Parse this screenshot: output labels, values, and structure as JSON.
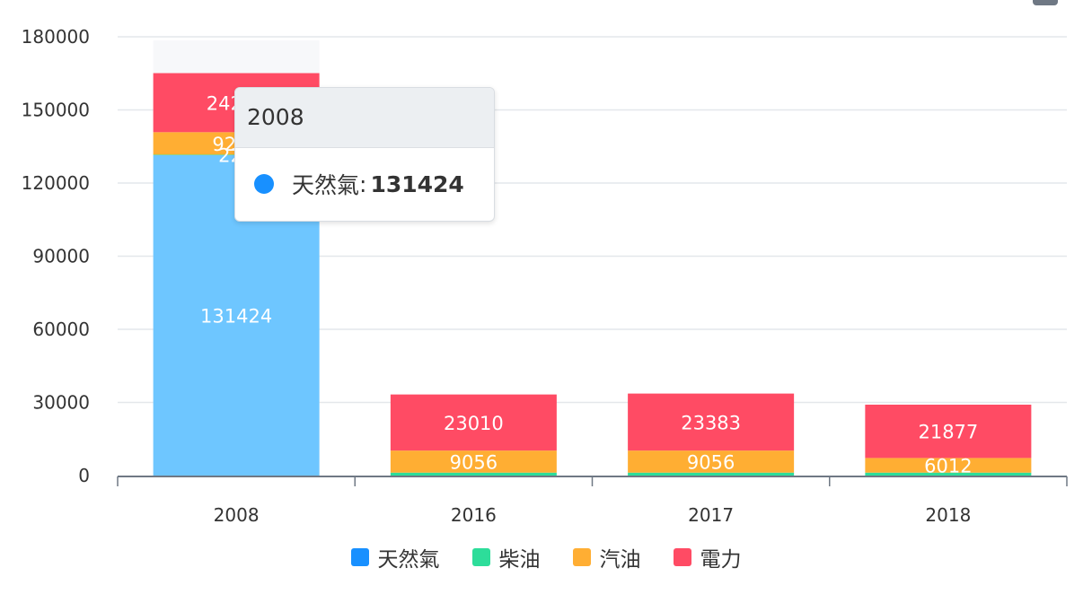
{
  "chart_data": {
    "type": "bar",
    "stacked": true,
    "categories": [
      "2008",
      "2016",
      "2017",
      "2018"
    ],
    "series": [
      {
        "name": "天然氣",
        "color": "#1890ff",
        "bar_color": "#6ec6ff",
        "values": [
          131424,
          0,
          0,
          0
        ],
        "labels": [
          "131424",
          "",
          "",
          ""
        ]
      },
      {
        "name": "柴油",
        "color": "#2ddd9a",
        "bar_color": "#2ddd9a",
        "values": [
          222,
          1200,
          1200,
          1200
        ],
        "labels": [
          "222",
          "",
          "",
          ""
        ]
      },
      {
        "name": "汽油",
        "color": "#ffae33",
        "bar_color": "#ffae33",
        "values": [
          9222,
          9056,
          9056,
          6012
        ],
        "labels": [
          "9222",
          "9056",
          "9056",
          "6012"
        ]
      },
      {
        "name": "電力",
        "color": "#ff4b64",
        "bar_color": "#ff4b64",
        "values": [
          24222,
          23010,
          23383,
          21877
        ],
        "labels": [
          "24222",
          "23010",
          "23383",
          "21877"
        ]
      }
    ],
    "y_ticks": [
      "0",
      "30000",
      "60000",
      "90000",
      "120000",
      "150000",
      "180000"
    ],
    "ylim": [
      0,
      180000
    ],
    "grid": true,
    "legend_position": "bottom",
    "highlighted_category_index": 0
  },
  "tooltip": {
    "title": "2008",
    "series_name": "天然氣",
    "separator": ":",
    "value": "131424",
    "dot_color": "#1890ff"
  }
}
